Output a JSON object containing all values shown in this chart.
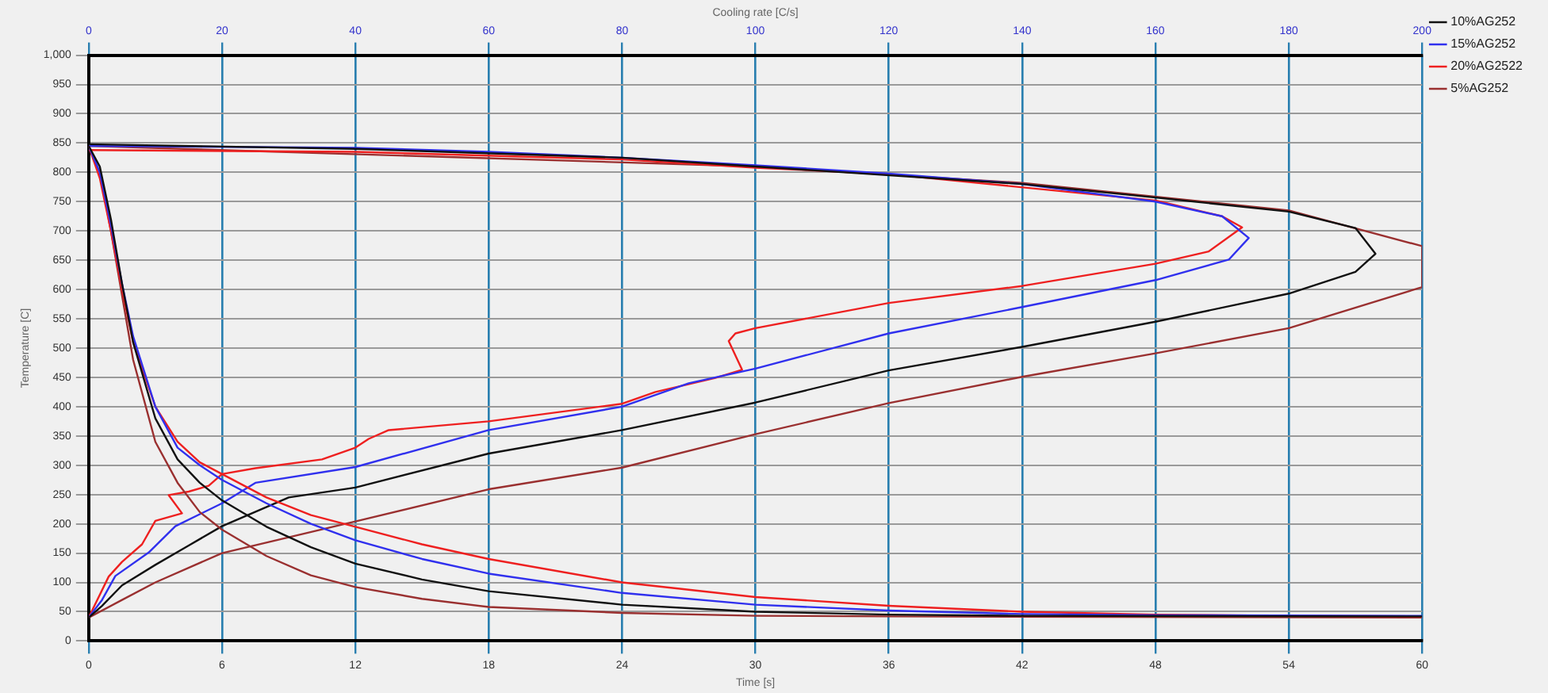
{
  "chart_data": {
    "type": "line",
    "xlabel": "Time [s]",
    "x2label": "Cooling rate [C/s]",
    "ylabel": "Temperature [C]",
    "xlim": [
      0,
      60
    ],
    "xticks": [
      0,
      6,
      12,
      18,
      24,
      30,
      36,
      42,
      48,
      54,
      60
    ],
    "x2lim": [
      0,
      200
    ],
    "x2ticks": [
      0,
      20,
      40,
      60,
      80,
      100,
      120,
      140,
      160,
      180,
      200
    ],
    "ylim": [
      0,
      1000
    ],
    "yticks": [
      0,
      50,
      100,
      150,
      200,
      250,
      300,
      350,
      400,
      450,
      500,
      550,
      600,
      650,
      700,
      750,
      800,
      850,
      900,
      950,
      {
        "value": 1000,
        "label": "1,000"
      }
    ],
    "grid": true,
    "legend": "top right",
    "series": [
      {
        "name": "10%AG252",
        "color": "#111111",
        "x": [
          0,
          0.5,
          1,
          1.5,
          2,
          3,
          4,
          5,
          6,
          8,
          10,
          12,
          15,
          18,
          24,
          30,
          36,
          42,
          60
        ],
        "values": [
          845,
          810,
          720,
          610,
          510,
          380,
          310,
          270,
          240,
          195,
          160,
          132,
          105,
          85,
          62,
          50,
          45,
          43,
          42
        ]
      },
      {
        "name": "15%AG252",
        "color": "#3030ee",
        "x": [
          0,
          0.5,
          1,
          1.5,
          2,
          3,
          4,
          5,
          6,
          8,
          10,
          12,
          15,
          18,
          24,
          30,
          36,
          42,
          48,
          60
        ],
        "values": [
          845,
          800,
          710,
          610,
          520,
          400,
          330,
          300,
          275,
          235,
          200,
          172,
          140,
          115,
          82,
          62,
          52,
          46,
          44,
          43
        ]
      },
      {
        "name": "20%AG2522",
        "color": "#ee2020",
        "x": [
          0,
          0.5,
          1,
          1.5,
          2,
          3,
          4,
          5,
          6,
          8,
          10,
          12,
          15,
          18,
          24,
          30,
          36,
          42,
          48,
          54,
          60
        ],
        "values": [
          845,
          790,
          700,
          600,
          510,
          400,
          340,
          305,
          285,
          245,
          215,
          195,
          165,
          140,
          100,
          75,
          60,
          50,
          45,
          43,
          42
        ]
      },
      {
        "name": "5%AG252",
        "color": "#9a3030",
        "x": [
          0,
          0.5,
          1,
          1.5,
          2,
          3,
          4,
          5,
          6,
          8,
          10,
          12,
          15,
          18,
          24,
          30,
          36,
          60
        ],
        "values": [
          845,
          800,
          700,
          590,
          480,
          340,
          270,
          220,
          190,
          145,
          112,
          92,
          72,
          58,
          48,
          43,
          42,
          40
        ]
      },
      {
        "color": "#111111",
        "axis": "x2",
        "x": [
          0,
          40,
          80,
          100,
          140,
          160,
          180,
          190,
          193,
          190,
          180,
          160,
          140,
          120,
          100,
          80,
          60,
          40,
          30,
          20,
          15,
          10,
          5,
          2,
          0
        ],
        "values": [
          848,
          840,
          825,
          810,
          780,
          757,
          733,
          705,
          661,
          630,
          593,
          545,
          502,
          462,
          407,
          360,
          320,
          262,
          245,
          196,
          163,
          130,
          95,
          60,
          40
        ]
      },
      {
        "color": "#3030ee",
        "axis": "x2",
        "x": [
          0,
          40,
          60,
          80,
          100,
          120,
          140,
          160,
          170,
          174,
          171,
          160,
          140,
          120,
          100,
          90,
          80,
          60,
          40,
          25,
          20,
          13,
          9,
          4,
          2,
          0
        ],
        "values": [
          845,
          842,
          835,
          825,
          812,
          798,
          780,
          750,
          725,
          688,
          651,
          616,
          570,
          525,
          465,
          440,
          400,
          360,
          297,
          270,
          235,
          196,
          151,
          111,
          70,
          40
        ]
      },
      {
        "color": "#ee2020",
        "axis": "x2",
        "x": [
          0,
          40,
          80,
          100,
          120,
          160,
          170,
          173,
          168,
          160,
          140,
          120,
          100,
          97,
          96,
          98,
          94,
          85,
          80,
          60,
          45,
          42,
          40,
          35,
          25,
          20,
          18,
          15,
          12,
          14,
          10,
          8,
          5,
          3,
          0
        ],
        "values": [
          838,
          835,
          822,
          808,
          797,
          752,
          725,
          706,
          665,
          644,
          606,
          577,
          534,
          525,
          512,
          463,
          449,
          425,
          405,
          375,
          360,
          345,
          330,
          310,
          295,
          285,
          265,
          255,
          249,
          218,
          205,
          165,
          135,
          110,
          40
        ]
      },
      {
        "color": "#9a3030",
        "axis": "x2",
        "x": [
          0,
          100,
          140,
          180,
          200,
          200,
          180,
          160,
          140,
          120,
          100,
          80,
          60,
          40,
          20,
          10,
          5,
          0
        ],
        "values": [
          845,
          810,
          782,
          735,
          674,
          604,
          534,
          491,
          451,
          406,
          353,
          296,
          259,
          204,
          150,
          100,
          70,
          40
        ]
      }
    ]
  }
}
